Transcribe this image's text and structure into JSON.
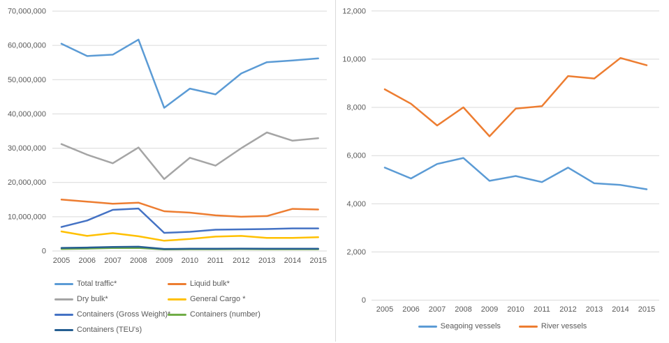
{
  "styles": {
    "grid_color": "#d9d9d9",
    "tick_color": "#595959",
    "divider_color": "#d9d9d9",
    "background": "#ffffff"
  },
  "chart_data": [
    {
      "id": "cargo-traffic",
      "type": "line",
      "title": "",
      "xlabel": "",
      "ylabel": "",
      "grid": true,
      "legend_position": "bottom-left-two-columns",
      "x": [
        "2005",
        "2006",
        "2007",
        "2008",
        "2009",
        "2010",
        "2011",
        "2012",
        "2013",
        "2014",
        "2015"
      ],
      "ylim": [
        0,
        70000000
      ],
      "ytick_values": [
        0,
        10000000,
        20000000,
        30000000,
        40000000,
        50000000,
        60000000,
        70000000
      ],
      "ytick_labels": [
        "0",
        "10,000,000",
        "20,000,000",
        "30,000,000",
        "40,000,000",
        "50,000,000",
        "60,000,000",
        "70,000,000"
      ],
      "series": [
        {
          "name": "Total traffic*",
          "color": "#5B9BD5",
          "values": [
            60500000,
            56900000,
            57300000,
            61700000,
            41800000,
            47400000,
            45700000,
            51800000,
            55100000,
            55600000,
            56200000
          ]
        },
        {
          "name": "Liquid bulk*",
          "color": "#ED7D31",
          "values": [
            15000000,
            14400000,
            13800000,
            14100000,
            11600000,
            11200000,
            10400000,
            10000000,
            10200000,
            12300000,
            12100000
          ]
        },
        {
          "name": "Dry bulk*",
          "color": "#A5A5A5",
          "values": [
            31200000,
            28100000,
            25600000,
            30200000,
            21000000,
            27200000,
            24900000,
            30000000,
            34600000,
            32200000,
            32900000
          ]
        },
        {
          "name": "General Cargo *",
          "color": "#FFC000",
          "values": [
            5700000,
            4400000,
            5200000,
            4300000,
            3000000,
            3500000,
            4200000,
            4400000,
            3800000,
            3800000,
            4000000
          ]
        },
        {
          "name": "Containers (Gross Weight)*",
          "color": "#4472C4",
          "values": [
            7000000,
            8900000,
            12000000,
            12400000,
            5300000,
            5600000,
            6200000,
            6300000,
            6400000,
            6600000,
            6600000
          ]
        },
        {
          "name": "Containers (number)",
          "color": "#70AD47",
          "values": [
            600000,
            700000,
            850000,
            900000,
            450000,
            500000,
            500000,
            550000,
            500000,
            500000,
            500000
          ]
        },
        {
          "name": "Containers (TEU's)",
          "color": "#255E91",
          "values": [
            900000,
            1000000,
            1150000,
            1250000,
            600000,
            650000,
            680000,
            700000,
            650000,
            670000,
            680000
          ]
        }
      ]
    },
    {
      "id": "vessels",
      "type": "line",
      "title": "",
      "xlabel": "",
      "ylabel": "",
      "grid": true,
      "legend_position": "bottom-center",
      "x": [
        "2005",
        "2006",
        "2007",
        "2008",
        "2009",
        "2010",
        "2011",
        "2012",
        "2013",
        "2014",
        "2015"
      ],
      "ylim": [
        0,
        12000
      ],
      "ytick_values": [
        0,
        2000,
        4000,
        6000,
        8000,
        10000,
        12000
      ],
      "ytick_labels": [
        "0",
        "2,000",
        "4,000",
        "6,000",
        "8,000",
        "10,000",
        "12,000"
      ],
      "series": [
        {
          "name": "Seagoing vessels",
          "color": "#5B9BD5",
          "values": [
            5500,
            5050,
            5650,
            5900,
            4950,
            5150,
            4900,
            5500,
            4850,
            4780,
            4600
          ]
        },
        {
          "name": "River vessels",
          "color": "#ED7D31",
          "values": [
            8750,
            8150,
            7250,
            8000,
            6800,
            7950,
            8050,
            9300,
            9200,
            10050,
            9750
          ]
        }
      ]
    }
  ]
}
